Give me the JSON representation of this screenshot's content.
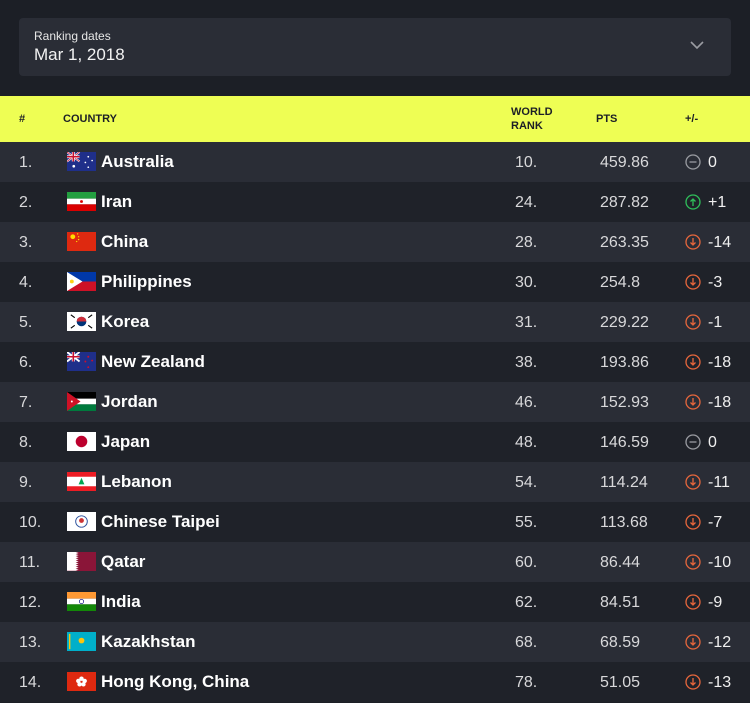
{
  "ranking_dates": {
    "label": "Ranking dates",
    "value": "Mar 1, 2018"
  },
  "header": {
    "rank": "#",
    "country": "COUNTRY",
    "world_rank_1": "WORLD",
    "world_rank_2": "RANK",
    "pts": "PTS",
    "change": "+/-"
  },
  "colors": {
    "accent": "#eefe54",
    "up": "#2fbf5a",
    "down": "#e8673c",
    "same": "#9a9ca2"
  },
  "rows": [
    {
      "pos": "1.",
      "flag": "australia",
      "country": "Australia",
      "world_rank": "10.",
      "pts": "459.86",
      "change": "0",
      "trend": "same"
    },
    {
      "pos": "2.",
      "flag": "iran",
      "country": "Iran",
      "world_rank": "24.",
      "pts": "287.82",
      "change": "+1",
      "trend": "up"
    },
    {
      "pos": "3.",
      "flag": "china",
      "country": "China",
      "world_rank": "28.",
      "pts": "263.35",
      "change": "-14",
      "trend": "down"
    },
    {
      "pos": "4.",
      "flag": "philippines",
      "country": "Philippines",
      "world_rank": "30.",
      "pts": "254.8",
      "change": "-3",
      "trend": "down"
    },
    {
      "pos": "5.",
      "flag": "korea",
      "country": "Korea",
      "world_rank": "31.",
      "pts": "229.22",
      "change": "-1",
      "trend": "down"
    },
    {
      "pos": "6.",
      "flag": "new-zealand",
      "country": "New Zealand",
      "world_rank": "38.",
      "pts": "193.86",
      "change": "-18",
      "trend": "down"
    },
    {
      "pos": "7.",
      "flag": "jordan",
      "country": "Jordan",
      "world_rank": "46.",
      "pts": "152.93",
      "change": "-18",
      "trend": "down"
    },
    {
      "pos": "8.",
      "flag": "japan",
      "country": "Japan",
      "world_rank": "48.",
      "pts": "146.59",
      "change": "0",
      "trend": "same"
    },
    {
      "pos": "9.",
      "flag": "lebanon",
      "country": "Lebanon",
      "world_rank": "54.",
      "pts": "114.24",
      "change": "-11",
      "trend": "down"
    },
    {
      "pos": "10.",
      "flag": "chinese-taipei",
      "country": "Chinese Taipei",
      "world_rank": "55.",
      "pts": "113.68",
      "change": "-7",
      "trend": "down"
    },
    {
      "pos": "11.",
      "flag": "qatar",
      "country": "Qatar",
      "world_rank": "60.",
      "pts": "86.44",
      "change": "-10",
      "trend": "down"
    },
    {
      "pos": "12.",
      "flag": "india",
      "country": "India",
      "world_rank": "62.",
      "pts": "84.51",
      "change": "-9",
      "trend": "down"
    },
    {
      "pos": "13.",
      "flag": "kazakhstan",
      "country": "Kazakhstan",
      "world_rank": "68.",
      "pts": "68.59",
      "change": "-12",
      "trend": "down"
    },
    {
      "pos": "14.",
      "flag": "hong-kong",
      "country": "Hong Kong, China",
      "world_rank": "78.",
      "pts": "51.05",
      "change": "-13",
      "trend": "down"
    }
  ]
}
